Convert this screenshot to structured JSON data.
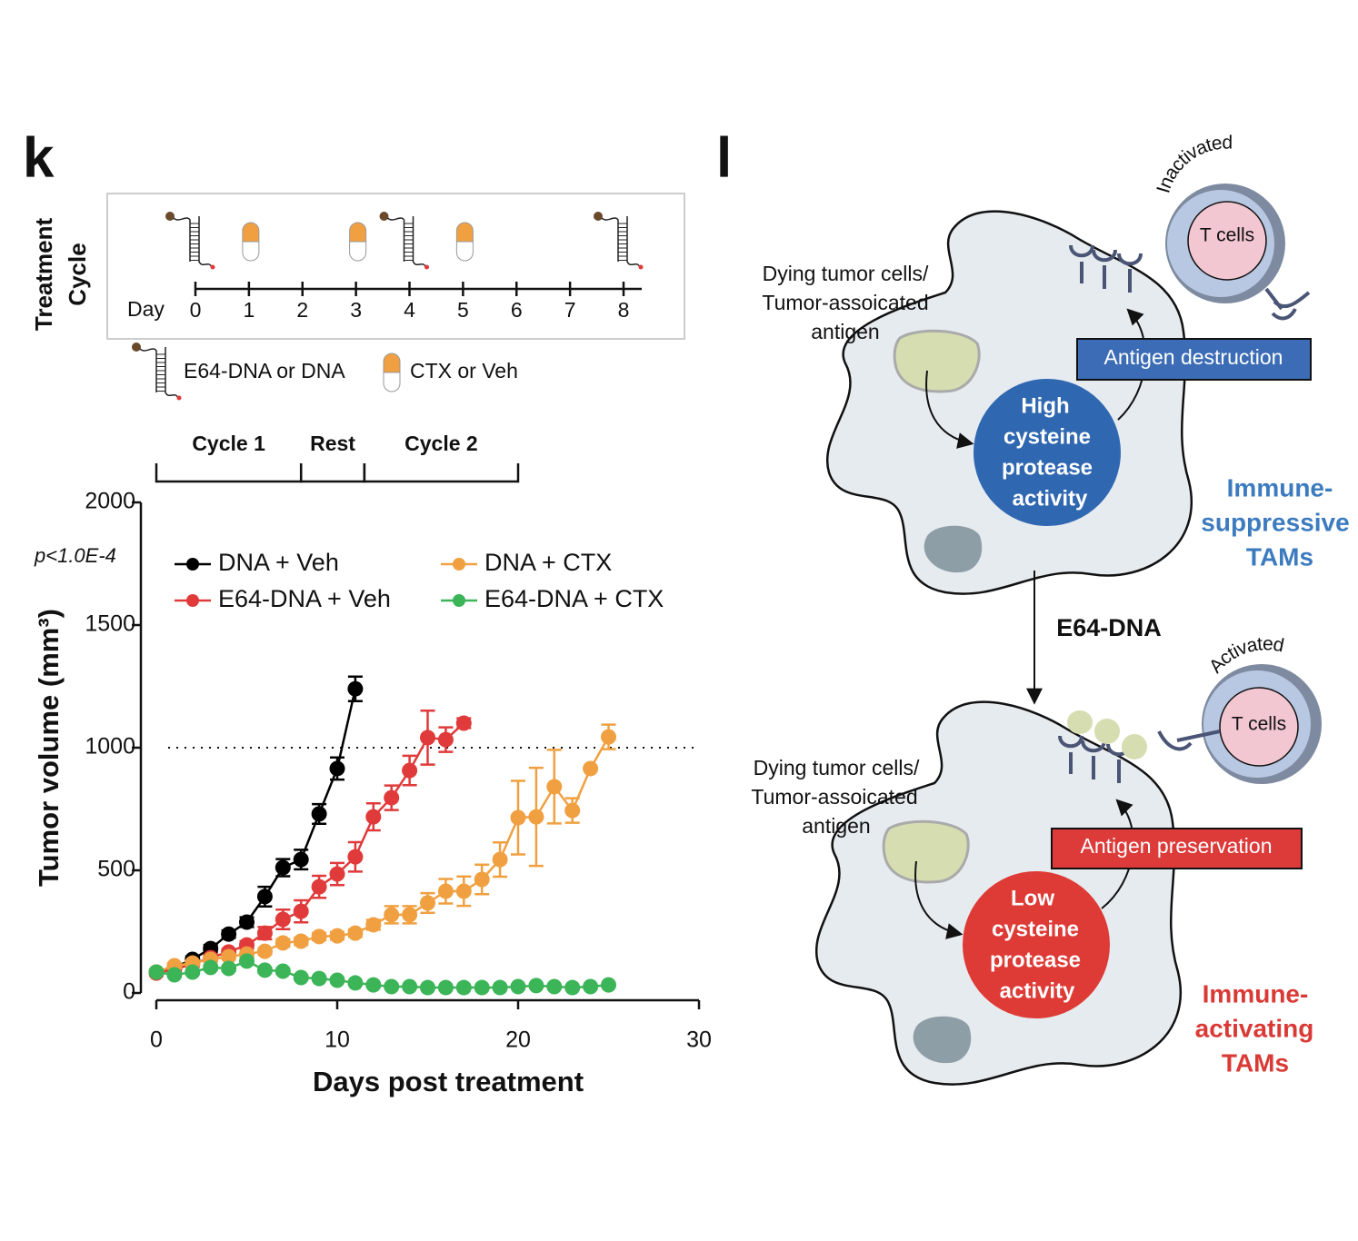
{
  "panel_k": {
    "label": "k",
    "treatment": {
      "axis_label": [
        "Treatment",
        "Cycle"
      ],
      "day_label": "Day",
      "days": [
        0,
        1,
        2,
        3,
        4,
        5,
        6,
        7,
        8
      ],
      "dna_days": [
        0,
        4,
        8
      ],
      "ctx_days": [
        1,
        3,
        5
      ],
      "dna_legend": "E64-DNA or DNA",
      "ctx_legend": "CTX or Veh"
    }
  },
  "chart_data": {
    "type": "line",
    "annotation": "p<1.0E-4",
    "xlabel": "Days post treatment",
    "ylabel": "Tumor volume (mm³)",
    "xlim": [
      0,
      30
    ],
    "xticks": [
      0,
      10,
      20,
      30
    ],
    "ylim": [
      0,
      2000
    ],
    "yticks": [
      0,
      500,
      1000,
      1500,
      2000
    ],
    "reference_line": 1000,
    "phases": [
      {
        "label": "Cycle 1",
        "start": 0,
        "end": 8
      },
      {
        "label": "Rest",
        "start": 8,
        "end": 11.5
      },
      {
        "label": "Cycle 2",
        "start": 11.5,
        "end": 20
      }
    ],
    "series": [
      {
        "name": "DNA + Veh",
        "color": "#000000",
        "x": [
          0,
          1,
          2,
          3,
          4,
          5,
          6,
          7,
          8,
          9,
          10,
          11
        ],
        "values": [
          85,
          104,
          137,
          181,
          240,
          289,
          393,
          511,
          544,
          730,
          915,
          1240
        ],
        "errors": [
          10,
          10,
          12,
          15,
          15,
          20,
          40,
          35,
          40,
          40,
          45,
          50
        ]
      },
      {
        "name": "E64-DNA + Veh",
        "color": "#e03a3a",
        "x": [
          0,
          1,
          2,
          3,
          4,
          5,
          6,
          7,
          8,
          9,
          10,
          11,
          12,
          13,
          14,
          15,
          16,
          17
        ],
        "values": [
          81,
          96,
          118,
          144,
          167,
          196,
          244,
          300,
          333,
          433,
          485,
          555,
          718,
          796,
          907,
          1041,
          1033,
          1100
        ],
        "errors": [
          10,
          10,
          10,
          12,
          12,
          15,
          25,
          40,
          45,
          45,
          45,
          60,
          55,
          50,
          60,
          110,
          50,
          20
        ]
      },
      {
        "name": "DNA + CTX",
        "color": "#f0a040",
        "x": [
          0,
          1,
          2,
          3,
          4,
          5,
          6,
          7,
          8,
          9,
          10,
          11,
          12,
          13,
          14,
          15,
          16,
          17,
          18,
          19,
          20,
          21,
          22,
          23,
          24,
          25
        ],
        "values": [
          85,
          111,
          122,
          137,
          148,
          159,
          170,
          204,
          211,
          230,
          233,
          244,
          278,
          319,
          319,
          367,
          415,
          415,
          463,
          544,
          715,
          718,
          841,
          744,
          915,
          1044
        ],
        "errors": [
          10,
          10,
          10,
          10,
          10,
          10,
          12,
          15,
          15,
          15,
          15,
          15,
          20,
          35,
          35,
          40,
          50,
          60,
          60,
          70,
          150,
          200,
          150,
          50,
          0,
          50
        ]
      },
      {
        "name": "E64-DNA + CTX",
        "color": "#3cb458",
        "x": [
          0,
          1,
          2,
          3,
          4,
          5,
          6,
          7,
          8,
          9,
          10,
          11,
          12,
          13,
          14,
          15,
          16,
          17,
          18,
          19,
          20,
          21,
          22,
          23,
          24,
          25
        ],
        "values": [
          85,
          74,
          85,
          104,
          100,
          130,
          93,
          89,
          63,
          59,
          52,
          41,
          33,
          26,
          26,
          22,
          22,
          22,
          22,
          22,
          26,
          30,
          26,
          22,
          26,
          33
        ],
        "errors": [
          10,
          8,
          8,
          10,
          10,
          12,
          10,
          10,
          8,
          8,
          8,
          6,
          6,
          5,
          5,
          5,
          5,
          5,
          5,
          5,
          5,
          6,
          5,
          5,
          5,
          6
        ]
      }
    ]
  },
  "panel_l": {
    "label": "l",
    "top": {
      "t_cell_state": "Inactivated",
      "t_cell": "T cells",
      "antigen": [
        "Dying tumor cells/",
        "Tumor-assoicated",
        "antigen"
      ],
      "box": "Antigen destruction",
      "activity": [
        "High",
        "cysteine",
        "protease",
        "activity"
      ],
      "tam": [
        "Immune-",
        "suppressive",
        "TAMs"
      ]
    },
    "arrow_label": "E64-DNA",
    "bottom": {
      "t_cell_state": "Activated",
      "t_cell": "T cells",
      "antigen": [
        "Dying tumor cells/",
        "Tumor-assoicated",
        "antigen"
      ],
      "box": "Antigen preservation",
      "activity": [
        "Low",
        "cysteine",
        "protease",
        "activity"
      ],
      "tam": [
        "Immune-",
        "activating",
        "TAMs"
      ]
    }
  }
}
